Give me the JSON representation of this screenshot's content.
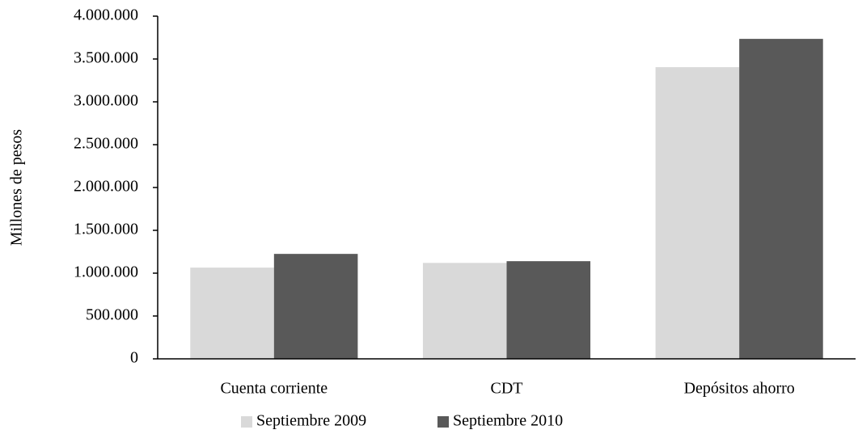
{
  "chart_data": {
    "type": "bar",
    "y_label": "Millones de pesos",
    "categories": [
      "Cuenta corriente",
      "CDT",
      "Depósitos ahorro"
    ],
    "series": [
      {
        "name": "Septiembre 2009",
        "color": "#d9d9d9",
        "values": [
          1065000,
          1120000,
          3405000
        ]
      },
      {
        "name": "Septiembre 2010",
        "color": "#595959",
        "values": [
          1225000,
          1140000,
          3735000
        ]
      }
    ],
    "ylim": [
      0,
      4000000
    ],
    "yticks": [
      0,
      {
        "value": 500000,
        "label": "500.000"
      },
      {
        "value": 1000000,
        "label": "1.000.000"
      },
      {
        "value": 1500000,
        "label": "1.500.000"
      },
      {
        "value": 2000000,
        "label": "2.000.000"
      },
      {
        "value": 2500000,
        "label": "2.500.000"
      },
      {
        "value": 3000000,
        "label": "3.000.000"
      },
      {
        "value": 3500000,
        "label": "3.500.000"
      },
      {
        "value": 4000000,
        "label": "4.000.000"
      }
    ],
    "grid": false,
    "legend": "bottom"
  }
}
